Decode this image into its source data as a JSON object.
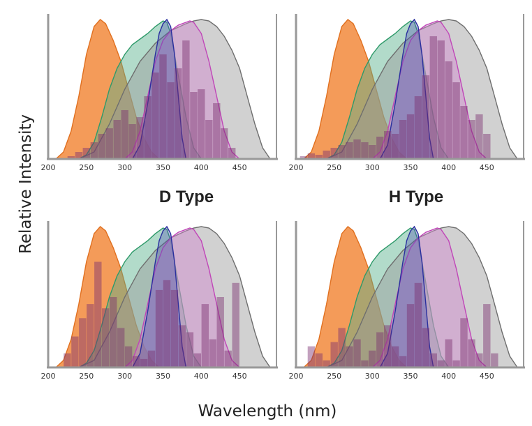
{
  "figure": {
    "ylabel": "Relative Intensity",
    "xlabel": "Wavelength (nm)"
  },
  "colors": {
    "orange": "#f28a3c",
    "green": "#54b08a",
    "gray": "#9a9a9a",
    "pink": "#d184cf",
    "blue": "#4a4fb2",
    "histogram": "#7a2f6e"
  },
  "chart_data": [
    {
      "type": "area",
      "title": "",
      "xlabel": "",
      "ylabel": "",
      "xlim": [
        200,
        500
      ],
      "ylim": [
        0,
        1
      ],
      "xticks": [
        200,
        250,
        300,
        350,
        400,
        450
      ],
      "grid": false,
      "series": [
        {
          "color": "orange",
          "x": [
            210,
            220,
            230,
            240,
            250,
            260,
            268,
            275,
            285,
            295,
            305,
            315,
            325,
            335,
            345
          ],
          "y": [
            0,
            0.05,
            0.2,
            0.45,
            0.75,
            0.95,
            1.0,
            0.97,
            0.85,
            0.7,
            0.5,
            0.3,
            0.15,
            0.05,
            0
          ]
        },
        {
          "color": "green",
          "x": [
            240,
            250,
            260,
            270,
            280,
            290,
            300,
            310,
            320,
            330,
            340,
            350,
            355,
            360,
            370,
            380,
            390,
            400
          ],
          "y": [
            0,
            0.03,
            0.12,
            0.3,
            0.5,
            0.65,
            0.75,
            0.82,
            0.86,
            0.9,
            0.95,
            0.99,
            0.98,
            0.9,
            0.6,
            0.3,
            0.08,
            0
          ]
        },
        {
          "color": "gray",
          "x": [
            240,
            260,
            280,
            300,
            320,
            340,
            360,
            380,
            390,
            400,
            410,
            420,
            430,
            440,
            450,
            460,
            470,
            480,
            490
          ],
          "y": [
            0,
            0.05,
            0.25,
            0.5,
            0.7,
            0.83,
            0.92,
            0.97,
            0.99,
            1.0,
            0.99,
            0.95,
            0.88,
            0.78,
            0.65,
            0.45,
            0.25,
            0.08,
            0
          ]
        },
        {
          "color": "pink",
          "x": [
            300,
            310,
            320,
            330,
            340,
            350,
            360,
            370,
            380,
            385,
            390,
            400,
            410,
            420,
            430,
            440,
            450
          ],
          "y": [
            0,
            0.05,
            0.2,
            0.45,
            0.7,
            0.85,
            0.92,
            0.96,
            0.98,
            0.99,
            0.98,
            0.9,
            0.7,
            0.45,
            0.2,
            0.05,
            0
          ]
        },
        {
          "color": "blue",
          "x": [
            310,
            320,
            330,
            340,
            345,
            350,
            355,
            360,
            365,
            370,
            375,
            380
          ],
          "y": [
            0,
            0.1,
            0.4,
            0.75,
            0.9,
            0.97,
            1.0,
            0.95,
            0.75,
            0.45,
            0.15,
            0
          ]
        }
      ],
      "histogram": {
        "color": "histogram",
        "x": [
          230,
          240,
          250,
          260,
          270,
          280,
          290,
          300,
          310,
          320,
          330,
          340,
          350,
          360,
          370,
          380,
          390,
          400,
          410,
          420,
          430,
          440
        ],
        "values": [
          0.02,
          0.05,
          0.08,
          0.12,
          0.18,
          0.22,
          0.28,
          0.35,
          0.25,
          0.3,
          0.45,
          0.62,
          0.75,
          0.55,
          0.65,
          0.85,
          0.48,
          0.5,
          0.28,
          0.4,
          0.22,
          0.08
        ]
      }
    },
    {
      "type": "area",
      "title": "D Type",
      "xlabel": "",
      "ylabel": "",
      "xlim": [
        200,
        500
      ],
      "ylim": [
        0,
        1
      ],
      "xticks": [
        200,
        250,
        300,
        350,
        400,
        450
      ],
      "grid": false,
      "series": [
        {
          "color": "orange",
          "x": [
            210,
            220,
            230,
            240,
            250,
            260,
            268,
            275,
            285,
            295,
            305,
            315,
            325,
            335,
            345
          ],
          "y": [
            0,
            0.05,
            0.2,
            0.45,
            0.75,
            0.95,
            1.0,
            0.97,
            0.85,
            0.7,
            0.5,
            0.3,
            0.15,
            0.05,
            0
          ]
        },
        {
          "color": "green",
          "x": [
            240,
            250,
            260,
            270,
            280,
            290,
            300,
            310,
            320,
            330,
            340,
            350,
            355,
            360,
            370,
            380,
            390,
            400
          ],
          "y": [
            0,
            0.03,
            0.12,
            0.3,
            0.5,
            0.65,
            0.75,
            0.82,
            0.86,
            0.9,
            0.95,
            0.99,
            0.98,
            0.9,
            0.6,
            0.3,
            0.08,
            0
          ]
        },
        {
          "color": "gray",
          "x": [
            240,
            260,
            280,
            300,
            320,
            340,
            360,
            380,
            390,
            400,
            410,
            420,
            430,
            440,
            450,
            460,
            470,
            480,
            490
          ],
          "y": [
            0,
            0.05,
            0.25,
            0.5,
            0.7,
            0.83,
            0.92,
            0.97,
            0.99,
            1.0,
            0.99,
            0.95,
            0.88,
            0.78,
            0.65,
            0.45,
            0.25,
            0.08,
            0
          ]
        },
        {
          "color": "pink",
          "x": [
            300,
            310,
            320,
            330,
            340,
            350,
            360,
            370,
            380,
            385,
            390,
            400,
            410,
            420,
            430,
            440,
            450
          ],
          "y": [
            0,
            0.05,
            0.2,
            0.45,
            0.7,
            0.85,
            0.92,
            0.96,
            0.98,
            0.99,
            0.98,
            0.9,
            0.7,
            0.45,
            0.2,
            0.05,
            0
          ]
        },
        {
          "color": "blue",
          "x": [
            310,
            320,
            330,
            340,
            345,
            350,
            355,
            360,
            365,
            370,
            375,
            380
          ],
          "y": [
            0,
            0.1,
            0.4,
            0.75,
            0.9,
            0.97,
            1.0,
            0.95,
            0.75,
            0.45,
            0.15,
            0
          ]
        }
      ],
      "histogram": {
        "color": "histogram",
        "x": [
          210,
          220,
          230,
          240,
          250,
          260,
          270,
          280,
          290,
          300,
          310,
          320,
          330,
          340,
          350,
          360,
          370,
          380,
          390,
          400,
          410,
          420,
          430,
          440,
          450
        ],
        "values": [
          0.02,
          0.04,
          0.03,
          0.06,
          0.08,
          0.1,
          0.12,
          0.14,
          0.12,
          0.1,
          0.16,
          0.2,
          0.18,
          0.28,
          0.32,
          0.45,
          0.6,
          0.88,
          0.85,
          0.7,
          0.55,
          0.38,
          0.28,
          0.32,
          0.18
        ]
      }
    },
    {
      "type": "area",
      "title": "H Type",
      "xlabel": "",
      "ylabel": "",
      "xlim": [
        200,
        500
      ],
      "ylim": [
        0,
        1
      ],
      "xticks": [
        200,
        250,
        300,
        350,
        400,
        450
      ],
      "grid": false,
      "series": [
        {
          "color": "orange",
          "x": [
            210,
            220,
            230,
            240,
            250,
            260,
            268,
            275,
            285,
            295,
            305,
            315,
            325,
            335,
            345
          ],
          "y": [
            0,
            0.05,
            0.2,
            0.45,
            0.75,
            0.95,
            1.0,
            0.97,
            0.85,
            0.7,
            0.5,
            0.3,
            0.15,
            0.05,
            0
          ]
        },
        {
          "color": "green",
          "x": [
            240,
            250,
            260,
            270,
            280,
            290,
            300,
            310,
            320,
            330,
            340,
            350,
            355,
            360,
            370,
            380,
            390,
            400
          ],
          "y": [
            0,
            0.03,
            0.12,
            0.3,
            0.5,
            0.65,
            0.75,
            0.82,
            0.86,
            0.9,
            0.95,
            0.99,
            0.98,
            0.9,
            0.6,
            0.3,
            0.08,
            0
          ]
        },
        {
          "color": "gray",
          "x": [
            240,
            260,
            280,
            300,
            320,
            340,
            360,
            380,
            390,
            400,
            410,
            420,
            430,
            440,
            450,
            460,
            470,
            480,
            490
          ],
          "y": [
            0,
            0.05,
            0.25,
            0.5,
            0.7,
            0.83,
            0.92,
            0.97,
            0.99,
            1.0,
            0.99,
            0.95,
            0.88,
            0.78,
            0.65,
            0.45,
            0.25,
            0.08,
            0
          ]
        },
        {
          "color": "pink",
          "x": [
            300,
            310,
            320,
            330,
            340,
            350,
            360,
            370,
            380,
            385,
            390,
            400,
            410,
            420,
            430,
            440,
            450
          ],
          "y": [
            0,
            0.05,
            0.2,
            0.45,
            0.7,
            0.85,
            0.92,
            0.96,
            0.98,
            0.99,
            0.98,
            0.9,
            0.7,
            0.45,
            0.2,
            0.05,
            0
          ]
        },
        {
          "color": "blue",
          "x": [
            310,
            320,
            330,
            340,
            345,
            350,
            355,
            360,
            365,
            370,
            375,
            380
          ],
          "y": [
            0,
            0.1,
            0.4,
            0.75,
            0.9,
            0.97,
            1.0,
            0.95,
            0.75,
            0.45,
            0.15,
            0
          ]
        }
      ],
      "histogram": {
        "color": "histogram",
        "x": [
          225,
          235,
          245,
          255,
          265,
          275,
          285,
          295,
          305,
          315,
          325,
          335,
          345,
          355,
          365,
          375,
          385,
          395,
          405,
          415,
          425,
          435,
          445
        ],
        "values": [
          0.1,
          0.22,
          0.35,
          0.45,
          0.75,
          0.42,
          0.5,
          0.28,
          0.15,
          0.08,
          0.06,
          0.12,
          0.55,
          0.62,
          0.55,
          0.3,
          0.25,
          0.1,
          0.45,
          0.2,
          0.5,
          0.12,
          0.6
        ]
      }
    },
    {
      "type": "area",
      "title": "",
      "xlabel": "",
      "ylabel": "",
      "xlim": [
        200,
        500
      ],
      "ylim": [
        0,
        1
      ],
      "xticks": [
        200,
        250,
        300,
        350,
        400,
        450
      ],
      "grid": false,
      "series": [
        {
          "color": "orange",
          "x": [
            210,
            220,
            230,
            240,
            250,
            260,
            268,
            275,
            285,
            295,
            305,
            315,
            325,
            335,
            345
          ],
          "y": [
            0,
            0.05,
            0.2,
            0.45,
            0.75,
            0.95,
            1.0,
            0.97,
            0.85,
            0.7,
            0.5,
            0.3,
            0.15,
            0.05,
            0
          ]
        },
        {
          "color": "green",
          "x": [
            240,
            250,
            260,
            270,
            280,
            290,
            300,
            310,
            320,
            330,
            340,
            350,
            355,
            360,
            370,
            380,
            390,
            400
          ],
          "y": [
            0,
            0.03,
            0.12,
            0.3,
            0.5,
            0.65,
            0.75,
            0.82,
            0.86,
            0.9,
            0.95,
            0.99,
            0.98,
            0.9,
            0.6,
            0.3,
            0.08,
            0
          ]
        },
        {
          "color": "gray",
          "x": [
            240,
            260,
            280,
            300,
            320,
            340,
            360,
            380,
            390,
            400,
            410,
            420,
            430,
            440,
            450,
            460,
            470,
            480,
            490
          ],
          "y": [
            0,
            0.05,
            0.25,
            0.5,
            0.7,
            0.83,
            0.92,
            0.97,
            0.99,
            1.0,
            0.99,
            0.95,
            0.88,
            0.78,
            0.65,
            0.45,
            0.25,
            0.08,
            0
          ]
        },
        {
          "color": "pink",
          "x": [
            300,
            310,
            320,
            330,
            340,
            350,
            360,
            370,
            380,
            385,
            390,
            400,
            410,
            420,
            430,
            440,
            450
          ],
          "y": [
            0,
            0.05,
            0.2,
            0.45,
            0.7,
            0.85,
            0.92,
            0.96,
            0.98,
            0.99,
            0.98,
            0.9,
            0.7,
            0.45,
            0.2,
            0.05,
            0
          ]
        },
        {
          "color": "blue",
          "x": [
            310,
            320,
            330,
            340,
            345,
            350,
            355,
            360,
            365,
            370,
            375,
            380
          ],
          "y": [
            0,
            0.1,
            0.4,
            0.75,
            0.9,
            0.97,
            1.0,
            0.95,
            0.75,
            0.45,
            0.15,
            0
          ]
        }
      ],
      "histogram": {
        "color": "histogram",
        "x": [
          220,
          230,
          240,
          250,
          260,
          270,
          280,
          290,
          300,
          310,
          320,
          330,
          340,
          350,
          360,
          370,
          380,
          390,
          400,
          410,
          420,
          430,
          440,
          450,
          460
        ],
        "values": [
          0.15,
          0.1,
          0.05,
          0.18,
          0.28,
          0.15,
          0.2,
          0.05,
          0.12,
          0.25,
          0.3,
          0.15,
          0.08,
          0.45,
          0.6,
          0.28,
          0.1,
          0.05,
          0.2,
          0.05,
          0.35,
          0.2,
          0.1,
          0.45,
          0.1
        ]
      }
    }
  ]
}
